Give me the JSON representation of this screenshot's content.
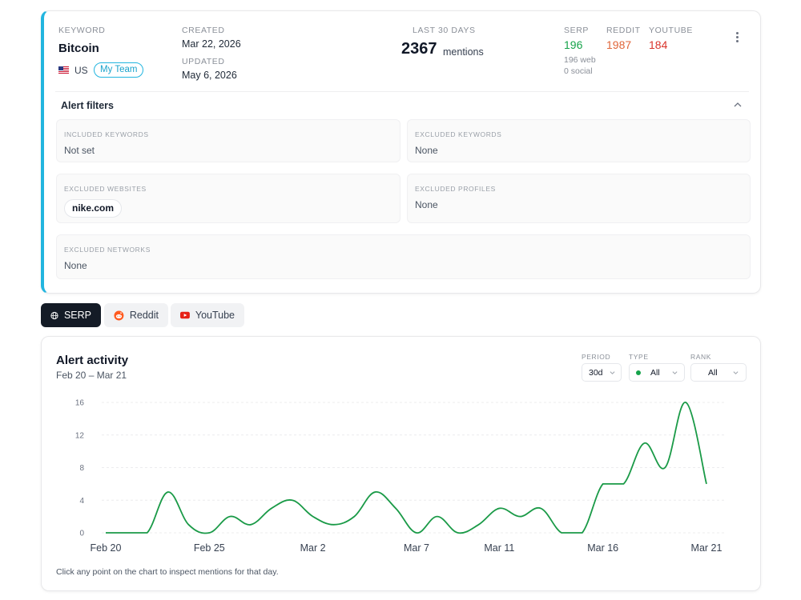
{
  "alert": {
    "keyword_label": "KEYWORD",
    "keyword": "Bitcoin",
    "country": "US",
    "team": "My Team",
    "created_label": "CREATED",
    "created": "Mar 22, 2026",
    "updated_label": "UPDATED",
    "updated": "May 6, 2026",
    "period_label": "LAST 30 DAYS",
    "mentions_count": "2367",
    "mentions_word": "mentions",
    "serp_label": "SERP",
    "serp_value": "196",
    "serp_web": "196 web",
    "serp_social": "0 social",
    "reddit_label": "REDDIT",
    "reddit_value": "1987",
    "youtube_label": "YOUTUBE",
    "youtube_value": "184",
    "colors": {
      "accent": "#22b5df",
      "serp": "#16a34a",
      "reddit": "#e0663a",
      "youtube": "#d9342b"
    }
  },
  "filters": {
    "title": "Alert filters",
    "included_keywords_label": "INCLUDED KEYWORDS",
    "included_keywords": "Not set",
    "excluded_keywords_label": "EXCLUDED KEYWORDS",
    "excluded_keywords": "None",
    "excluded_websites_label": "EXCLUDED WEBSITES",
    "excluded_websites": [
      "nike.com"
    ],
    "excluded_profiles_label": "EXCLUDED PROFILES",
    "excluded_profiles": "None",
    "excluded_networks_label": "EXCLUDED NETWORKS",
    "excluded_networks": "None"
  },
  "tabs": [
    {
      "label": "SERP",
      "icon": "globe-icon",
      "active": true
    },
    {
      "label": "Reddit",
      "icon": "reddit-icon",
      "active": false
    },
    {
      "label": "YouTube",
      "icon": "youtube-icon",
      "active": false
    }
  ],
  "activity": {
    "title": "Alert activity",
    "range": "Feb 20 – Mar 21",
    "period_label": "PERIOD",
    "period_value": "30d",
    "type_label": "TYPE",
    "type_value": "All",
    "rank_label": "RANK",
    "rank_value": "All",
    "footer": "Click any point on the chart to inspect mentions for that day."
  },
  "chart_data": {
    "type": "line",
    "title": "",
    "xlabel": "",
    "ylabel": "",
    "ylim": [
      0,
      16
    ],
    "yticks": [
      0,
      4,
      8,
      12,
      16
    ],
    "x_tick_labels": [
      "Feb 20",
      "Feb 25",
      "Mar 2",
      "Mar 7",
      "Mar 11",
      "Mar 16",
      "Mar 21"
    ],
    "grid": true,
    "line_color": "#1a9a47",
    "series": [
      {
        "x": [
          "Feb 20",
          "Feb 21",
          "Feb 22",
          "Feb 23",
          "Feb 24",
          "Feb 25",
          "Feb 26",
          "Feb 27",
          "Feb 28",
          "Mar 1",
          "Mar 2",
          "Mar 3",
          "Mar 4",
          "Mar 5",
          "Mar 6",
          "Mar 7",
          "Mar 8",
          "Mar 9",
          "Mar 10",
          "Mar 11",
          "Mar 12",
          "Mar 13",
          "Mar 14",
          "Mar 15",
          "Mar 16",
          "Mar 17",
          "Mar 18",
          "Mar 19",
          "Mar 20",
          "Mar 21"
        ],
        "values": [
          0,
          0,
          0,
          5,
          1,
          0,
          2,
          1,
          3,
          4,
          2,
          1,
          2,
          5,
          3,
          0,
          2,
          0,
          1,
          3,
          2,
          3,
          0,
          0,
          6,
          6,
          11,
          8,
          16,
          6
        ]
      }
    ]
  }
}
